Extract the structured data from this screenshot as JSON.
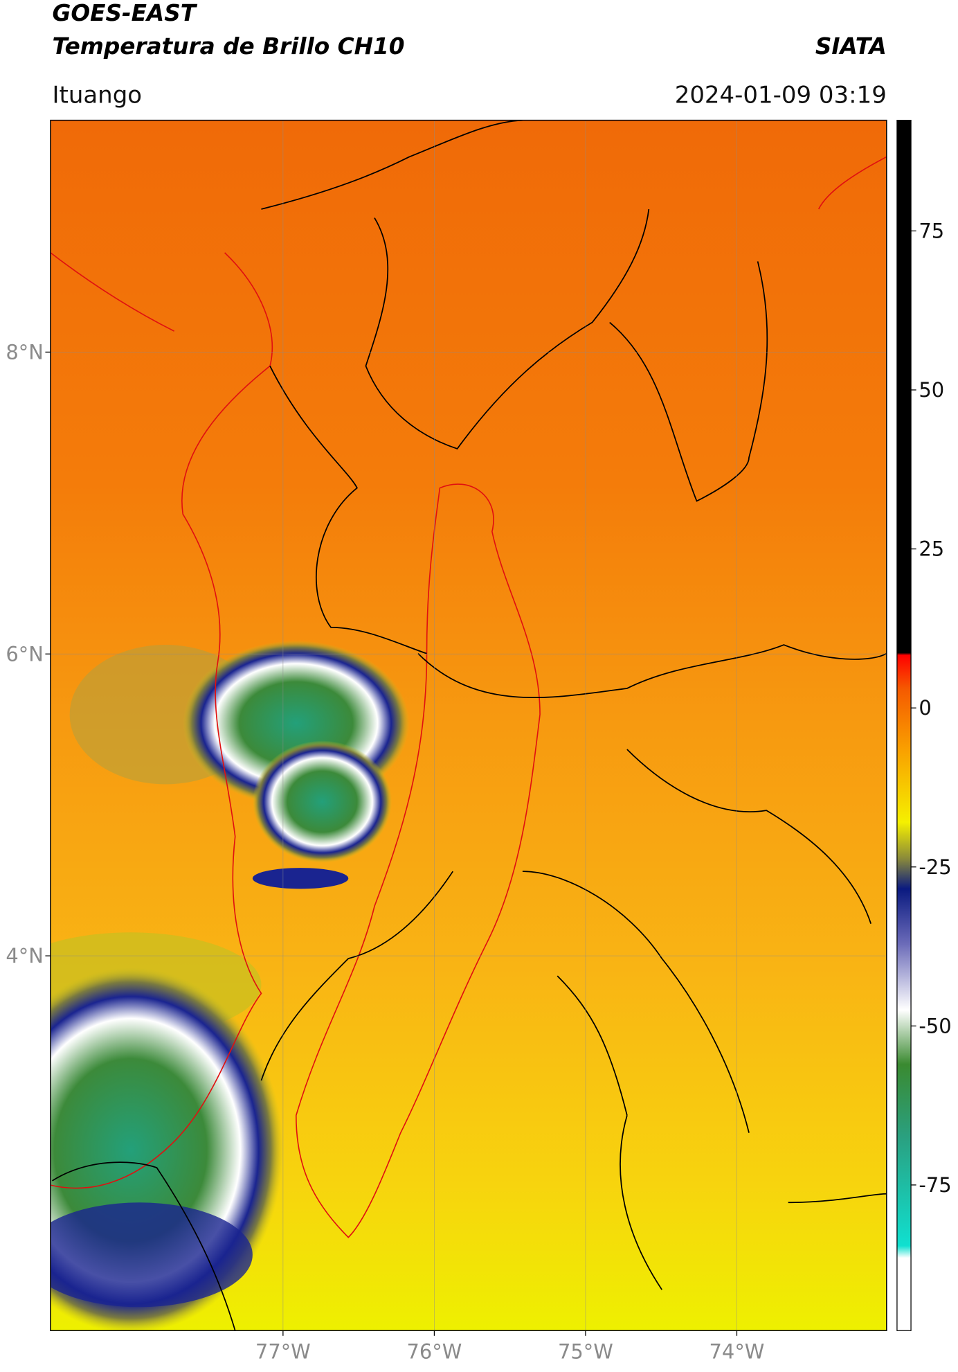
{
  "header": {
    "title_line1": "GOES-EAST",
    "title_line2": "Temperatura de Brillo CH10",
    "source": "SIATA",
    "location": "Ituango",
    "timestamp": "2024-01-09 03:19"
  },
  "map": {
    "xlim": [
      -78.537,
      -73.01
    ],
    "ylim": [
      1.517,
      9.536
    ],
    "lat_ticks": [
      {
        "value": 8,
        "label": "8°N"
      },
      {
        "value": 6,
        "label": "6°N"
      },
      {
        "value": 4,
        "label": "4°N"
      }
    ],
    "lon_ticks": [
      {
        "value": -77,
        "label": "77°W"
      },
      {
        "value": -76,
        "label": "76°W"
      },
      {
        "value": -75,
        "label": "75°W"
      },
      {
        "value": -74,
        "label": "74°W"
      }
    ],
    "grid": true
  },
  "colorbar": {
    "lim": [
      -97.9,
      92.4
    ],
    "ticks": [
      75,
      50,
      25,
      0,
      -25,
      -50,
      -75
    ]
  }
}
